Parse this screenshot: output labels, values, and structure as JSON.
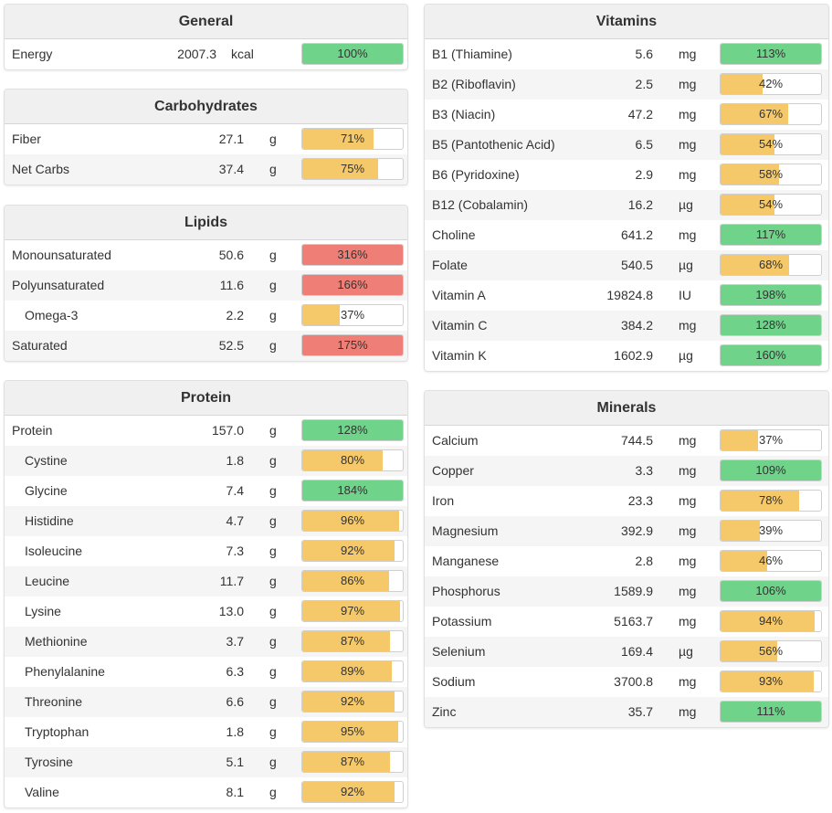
{
  "colors": {
    "green": "#6fd48a",
    "yellow": "#f5c96a",
    "red": "#ef7f76"
  },
  "panels": {
    "general": {
      "title": "General",
      "rows": [
        {
          "name": "Energy",
          "amount": "2007.3",
          "unit": "kcal",
          "percent": "100%",
          "value": 100,
          "color": "green",
          "indent": false
        }
      ]
    },
    "carbohydrates": {
      "title": "Carbohydrates",
      "rows": [
        {
          "name": "Fiber",
          "amount": "27.1",
          "unit": "g",
          "percent": "71%",
          "value": 71,
          "color": "yellow",
          "indent": false
        },
        {
          "name": "Net Carbs",
          "amount": "37.4",
          "unit": "g",
          "percent": "75%",
          "value": 75,
          "color": "yellow",
          "indent": false
        }
      ]
    },
    "lipids": {
      "title": "Lipids",
      "rows": [
        {
          "name": "Monounsaturated",
          "amount": "50.6",
          "unit": "g",
          "percent": "316%",
          "value": 316,
          "color": "red",
          "indent": false
        },
        {
          "name": "Polyunsaturated",
          "amount": "11.6",
          "unit": "g",
          "percent": "166%",
          "value": 166,
          "color": "red",
          "indent": false
        },
        {
          "name": "Omega-3",
          "amount": "2.2",
          "unit": "g",
          "percent": "37%",
          "value": 37,
          "color": "yellow",
          "indent": true
        },
        {
          "name": "Saturated",
          "amount": "52.5",
          "unit": "g",
          "percent": "175%",
          "value": 175,
          "color": "red",
          "indent": false
        }
      ]
    },
    "protein": {
      "title": "Protein",
      "rows": [
        {
          "name": "Protein",
          "amount": "157.0",
          "unit": "g",
          "percent": "128%",
          "value": 128,
          "color": "green",
          "indent": false
        },
        {
          "name": "Cystine",
          "amount": "1.8",
          "unit": "g",
          "percent": "80%",
          "value": 80,
          "color": "yellow",
          "indent": true
        },
        {
          "name": "Glycine",
          "amount": "7.4",
          "unit": "g",
          "percent": "184%",
          "value": 184,
          "color": "green",
          "indent": true
        },
        {
          "name": "Histidine",
          "amount": "4.7",
          "unit": "g",
          "percent": "96%",
          "value": 96,
          "color": "yellow",
          "indent": true
        },
        {
          "name": "Isoleucine",
          "amount": "7.3",
          "unit": "g",
          "percent": "92%",
          "value": 92,
          "color": "yellow",
          "indent": true
        },
        {
          "name": "Leucine",
          "amount": "11.7",
          "unit": "g",
          "percent": "86%",
          "value": 86,
          "color": "yellow",
          "indent": true
        },
        {
          "name": "Lysine",
          "amount": "13.0",
          "unit": "g",
          "percent": "97%",
          "value": 97,
          "color": "yellow",
          "indent": true
        },
        {
          "name": "Methionine",
          "amount": "3.7",
          "unit": "g",
          "percent": "87%",
          "value": 87,
          "color": "yellow",
          "indent": true
        },
        {
          "name": "Phenylalanine",
          "amount": "6.3",
          "unit": "g",
          "percent": "89%",
          "value": 89,
          "color": "yellow",
          "indent": true
        },
        {
          "name": "Threonine",
          "amount": "6.6",
          "unit": "g",
          "percent": "92%",
          "value": 92,
          "color": "yellow",
          "indent": true
        },
        {
          "name": "Tryptophan",
          "amount": "1.8",
          "unit": "g",
          "percent": "95%",
          "value": 95,
          "color": "yellow",
          "indent": true
        },
        {
          "name": "Tyrosine",
          "amount": "5.1",
          "unit": "g",
          "percent": "87%",
          "value": 87,
          "color": "yellow",
          "indent": true
        },
        {
          "name": "Valine",
          "amount": "8.1",
          "unit": "g",
          "percent": "92%",
          "value": 92,
          "color": "yellow",
          "indent": true
        }
      ]
    },
    "vitamins": {
      "title": "Vitamins",
      "rows": [
        {
          "name": "B1 (Thiamine)",
          "amount": "5.6",
          "unit": "mg",
          "percent": "113%",
          "value": 113,
          "color": "green",
          "indent": false
        },
        {
          "name": "B2 (Riboflavin)",
          "amount": "2.5",
          "unit": "mg",
          "percent": "42%",
          "value": 42,
          "color": "yellow",
          "indent": false
        },
        {
          "name": "B3 (Niacin)",
          "amount": "47.2",
          "unit": "mg",
          "percent": "67%",
          "value": 67,
          "color": "yellow",
          "indent": false
        },
        {
          "name": "B5 (Pantothenic Acid)",
          "amount": "6.5",
          "unit": "mg",
          "percent": "54%",
          "value": 54,
          "color": "yellow",
          "indent": false
        },
        {
          "name": "B6 (Pyridoxine)",
          "amount": "2.9",
          "unit": "mg",
          "percent": "58%",
          "value": 58,
          "color": "yellow",
          "indent": false
        },
        {
          "name": "B12 (Cobalamin)",
          "amount": "16.2",
          "unit": "µg",
          "percent": "54%",
          "value": 54,
          "color": "yellow",
          "indent": false
        },
        {
          "name": "Choline",
          "amount": "641.2",
          "unit": "mg",
          "percent": "117%",
          "value": 117,
          "color": "green",
          "indent": false
        },
        {
          "name": "Folate",
          "amount": "540.5",
          "unit": "µg",
          "percent": "68%",
          "value": 68,
          "color": "yellow",
          "indent": false
        },
        {
          "name": "Vitamin A",
          "amount": "19824.8",
          "unit": "IU",
          "percent": "198%",
          "value": 198,
          "color": "green",
          "indent": false
        },
        {
          "name": "Vitamin C",
          "amount": "384.2",
          "unit": "mg",
          "percent": "128%",
          "value": 128,
          "color": "green",
          "indent": false
        },
        {
          "name": "Vitamin K",
          "amount": "1602.9",
          "unit": "µg",
          "percent": "160%",
          "value": 160,
          "color": "green",
          "indent": false
        }
      ]
    },
    "minerals": {
      "title": "Minerals",
      "rows": [
        {
          "name": "Calcium",
          "amount": "744.5",
          "unit": "mg",
          "percent": "37%",
          "value": 37,
          "color": "yellow",
          "indent": false
        },
        {
          "name": "Copper",
          "amount": "3.3",
          "unit": "mg",
          "percent": "109%",
          "value": 109,
          "color": "green",
          "indent": false
        },
        {
          "name": "Iron",
          "amount": "23.3",
          "unit": "mg",
          "percent": "78%",
          "value": 78,
          "color": "yellow",
          "indent": false
        },
        {
          "name": "Magnesium",
          "amount": "392.9",
          "unit": "mg",
          "percent": "39%",
          "value": 39,
          "color": "yellow",
          "indent": false
        },
        {
          "name": "Manganese",
          "amount": "2.8",
          "unit": "mg",
          "percent": "46%",
          "value": 46,
          "color": "yellow",
          "indent": false
        },
        {
          "name": "Phosphorus",
          "amount": "1589.9",
          "unit": "mg",
          "percent": "106%",
          "value": 106,
          "color": "green",
          "indent": false
        },
        {
          "name": "Potassium",
          "amount": "5163.7",
          "unit": "mg",
          "percent": "94%",
          "value": 94,
          "color": "yellow",
          "indent": false
        },
        {
          "name": "Selenium",
          "amount": "169.4",
          "unit": "µg",
          "percent": "56%",
          "value": 56,
          "color": "yellow",
          "indent": false
        },
        {
          "name": "Sodium",
          "amount": "3700.8",
          "unit": "mg",
          "percent": "93%",
          "value": 93,
          "color": "yellow",
          "indent": false
        },
        {
          "name": "Zinc",
          "amount": "35.7",
          "unit": "mg",
          "percent": "111%",
          "value": 111,
          "color": "green",
          "indent": false
        }
      ]
    }
  }
}
